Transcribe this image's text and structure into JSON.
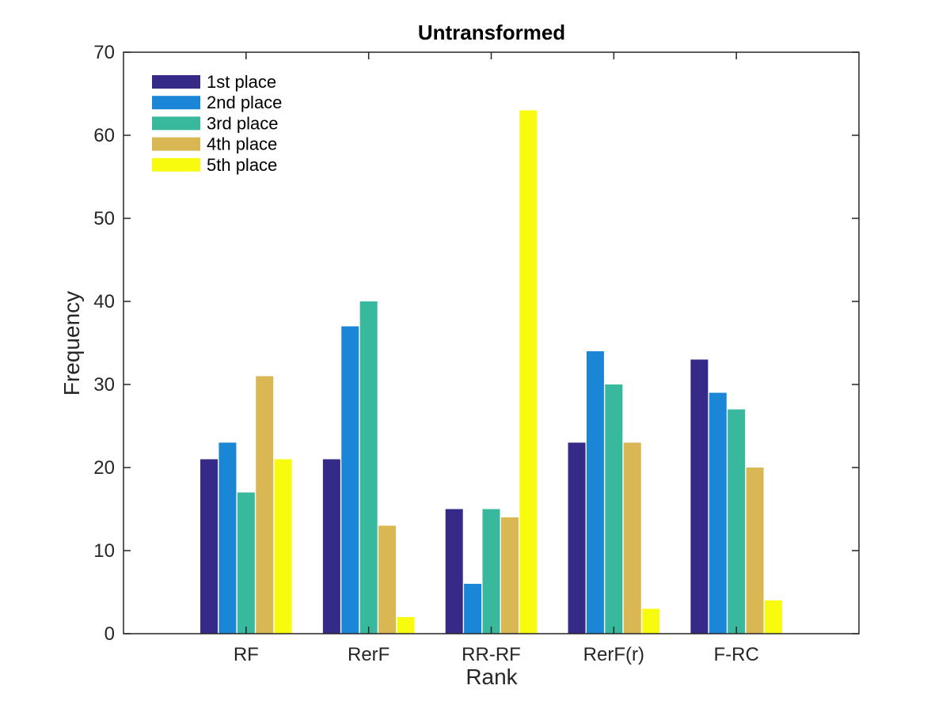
{
  "chart_data": {
    "type": "bar",
    "title": "Untransformed",
    "xlabel": "Rank",
    "ylabel": "Frequency",
    "ylim": [
      0,
      70
    ],
    "yticks": [
      0,
      10,
      20,
      30,
      40,
      50,
      60,
      70
    ],
    "categories": [
      "RF",
      "RerF",
      "RR-RF",
      "RerF(r)",
      "F-RC"
    ],
    "series": [
      {
        "name": "1st place",
        "color": "#352a87",
        "values": [
          21,
          21,
          15,
          23,
          33
        ]
      },
      {
        "name": "2nd place",
        "color": "#1a86d5",
        "values": [
          23,
          37,
          6,
          34,
          29
        ]
      },
      {
        "name": "3rd place",
        "color": "#38b99e",
        "values": [
          17,
          40,
          15,
          30,
          27
        ]
      },
      {
        "name": "4th place",
        "color": "#d9b752",
        "values": [
          31,
          13,
          14,
          23,
          20
        ]
      },
      {
        "name": "5th place",
        "color": "#f9fb0e",
        "values": [
          21,
          2,
          63,
          3,
          4
        ]
      }
    ],
    "grid": false,
    "legend_position": "top-left"
  }
}
